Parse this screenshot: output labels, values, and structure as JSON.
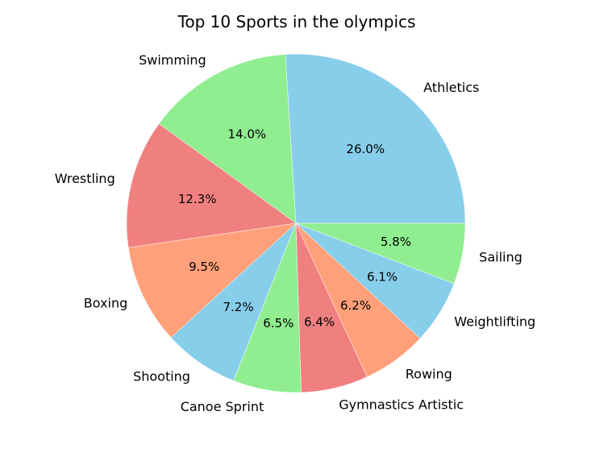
{
  "chart_data": {
    "type": "pie",
    "title": "Top 10 Sports in the olympics",
    "labels": [
      "Athletics",
      "Swimming",
      "Wrestling",
      "Boxing",
      "Shooting",
      "Canoe Sprint",
      "Gymnastics Artistic",
      "Rowing",
      "Weightlifting",
      "Sailing"
    ],
    "values": [
      26.0,
      14.0,
      12.3,
      9.5,
      7.2,
      6.5,
      6.4,
      6.2,
      6.1,
      5.8
    ],
    "percent_labels": [
      "26.0%",
      "14.0%",
      "12.3%",
      "9.5%",
      "7.2%",
      "6.5%",
      "6.4%",
      "6.2%",
      "6.1%",
      "5.8%"
    ],
    "colors": [
      "#87CEEB",
      "#90EE90",
      "#F08080",
      "#FFA07A",
      "#87CEEB",
      "#90EE90",
      "#F08080",
      "#FFA07A",
      "#87CEEB",
      "#90EE90"
    ],
    "start_angle_deg": 0,
    "direction": "counterclockwise"
  }
}
